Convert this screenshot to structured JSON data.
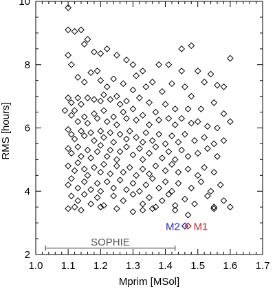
{
  "chart_data": {
    "type": "scatter",
    "xlabel": "Mprim [MSol]",
    "ylabel": "RMS [hours]",
    "xlim": [
      1.0,
      1.7
    ],
    "ylim": [
      2,
      10
    ],
    "x_ticks": [
      "1.0",
      "1.1",
      "1.2",
      "1.3",
      "1.4",
      "1.5",
      "1.6",
      "1.7"
    ],
    "y_ticks": [
      "2",
      "4",
      "6",
      "8",
      "10"
    ],
    "marker": "diamond",
    "marker_color": "#000000",
    "grid": false,
    "range_bar": {
      "label": "SOPHIE",
      "x_start": 1.03,
      "x_end": 1.43,
      "y": 2.2
    },
    "highlight_points": [
      {
        "label": "M2",
        "x": 1.46,
        "y": 2.9,
        "color": "#2b2bb0"
      },
      {
        "label": "M1",
        "x": 1.47,
        "y": 2.9,
        "color": "#b02b2b"
      }
    ],
    "points": [
      [
        1.1,
        9.8
      ],
      [
        1.1,
        9.1
      ],
      [
        1.12,
        9.05
      ],
      [
        1.14,
        9.1
      ],
      [
        1.15,
        8.65
      ],
      [
        1.16,
        8.8
      ],
      [
        1.18,
        8.4
      ],
      [
        1.2,
        8.35
      ],
      [
        1.17,
        7.75
      ],
      [
        1.19,
        7.8
      ],
      [
        1.22,
        8.5
      ],
      [
        1.25,
        8.3
      ],
      [
        1.28,
        8.15
      ],
      [
        1.3,
        8.0
      ],
      [
        1.31,
        7.65
      ],
      [
        1.33,
        7.8
      ],
      [
        1.38,
        8.0
      ],
      [
        1.41,
        8.0
      ],
      [
        1.45,
        8.5
      ],
      [
        1.45,
        7.8
      ],
      [
        1.48,
        8.6
      ],
      [
        1.5,
        7.8
      ],
      [
        1.54,
        7.7
      ],
      [
        1.6,
        8.2
      ],
      [
        1.1,
        8.3
      ],
      [
        1.11,
        8.0
      ],
      [
        1.13,
        7.6
      ],
      [
        1.15,
        7.45
      ],
      [
        1.2,
        7.5
      ],
      [
        1.22,
        7.3
      ],
      [
        1.24,
        7.55
      ],
      [
        1.27,
        7.4
      ],
      [
        1.3,
        7.2
      ],
      [
        1.34,
        7.3
      ],
      [
        1.36,
        7.45
      ],
      [
        1.39,
        7.15
      ],
      [
        1.42,
        7.4
      ],
      [
        1.46,
        7.3
      ],
      [
        1.48,
        7.0
      ],
      [
        1.52,
        7.45
      ],
      [
        1.56,
        7.35
      ],
      [
        1.58,
        7.3
      ],
      [
        1.1,
        6.95
      ],
      [
        1.11,
        6.8
      ],
      [
        1.13,
        6.95
      ],
      [
        1.14,
        6.75
      ],
      [
        1.16,
        6.95
      ],
      [
        1.18,
        6.9
      ],
      [
        1.2,
        6.85
      ],
      [
        1.21,
        7.05
      ],
      [
        1.23,
        6.9
      ],
      [
        1.25,
        7.0
      ],
      [
        1.26,
        6.75
      ],
      [
        1.28,
        6.85
      ],
      [
        1.3,
        6.6
      ],
      [
        1.32,
        6.95
      ],
      [
        1.35,
        6.8
      ],
      [
        1.37,
        6.5
      ],
      [
        1.4,
        6.75
      ],
      [
        1.43,
        6.6
      ],
      [
        1.47,
        6.6
      ],
      [
        1.51,
        6.6
      ],
      [
        1.55,
        6.8
      ],
      [
        1.58,
        6.45
      ],
      [
        1.6,
        6.2
      ],
      [
        1.09,
        6.55
      ],
      [
        1.11,
        6.4
      ],
      [
        1.12,
        6.55
      ],
      [
        1.13,
        6.2
      ],
      [
        1.15,
        6.35
      ],
      [
        1.16,
        6.15
      ],
      [
        1.18,
        6.45
      ],
      [
        1.19,
        6.3
      ],
      [
        1.21,
        6.55
      ],
      [
        1.22,
        6.2
      ],
      [
        1.24,
        6.35
      ],
      [
        1.25,
        6.1
      ],
      [
        1.27,
        6.5
      ],
      [
        1.28,
        6.3
      ],
      [
        1.31,
        6.25
      ],
      [
        1.33,
        6.4
      ],
      [
        1.35,
        6.1
      ],
      [
        1.38,
        6.25
      ],
      [
        1.41,
        6.3
      ],
      [
        1.43,
        6.1
      ],
      [
        1.45,
        6.3
      ],
      [
        1.48,
        6.15
      ],
      [
        1.5,
        6.2
      ],
      [
        1.53,
        6.05
      ],
      [
        1.56,
        6.0
      ],
      [
        1.1,
        5.95
      ],
      [
        1.11,
        5.8
      ],
      [
        1.12,
        5.65
      ],
      [
        1.14,
        5.9
      ],
      [
        1.15,
        5.75
      ],
      [
        1.17,
        5.85
      ],
      [
        1.18,
        5.6
      ],
      [
        1.2,
        5.9
      ],
      [
        1.21,
        5.7
      ],
      [
        1.23,
        5.85
      ],
      [
        1.24,
        5.55
      ],
      [
        1.26,
        5.8
      ],
      [
        1.28,
        5.65
      ],
      [
        1.29,
        5.9
      ],
      [
        1.31,
        5.7
      ],
      [
        1.33,
        5.55
      ],
      [
        1.34,
        5.85
      ],
      [
        1.36,
        5.6
      ],
      [
        1.38,
        5.8
      ],
      [
        1.4,
        5.5
      ],
      [
        1.42,
        5.75
      ],
      [
        1.44,
        5.55
      ],
      [
        1.46,
        5.8
      ],
      [
        1.49,
        5.6
      ],
      [
        1.52,
        5.7
      ],
      [
        1.55,
        5.5
      ],
      [
        1.58,
        5.6
      ],
      [
        1.1,
        5.35
      ],
      [
        1.11,
        5.2
      ],
      [
        1.13,
        5.4
      ],
      [
        1.14,
        5.1
      ],
      [
        1.16,
        5.3
      ],
      [
        1.17,
        5.05
      ],
      [
        1.19,
        5.25
      ],
      [
        1.2,
        5.45
      ],
      [
        1.22,
        5.1
      ],
      [
        1.23,
        5.3
      ],
      [
        1.25,
        5.0
      ],
      [
        1.26,
        5.25
      ],
      [
        1.28,
        5.4
      ],
      [
        1.3,
        5.15
      ],
      [
        1.32,
        5.35
      ],
      [
        1.33,
        5.0
      ],
      [
        1.35,
        5.2
      ],
      [
        1.37,
        5.4
      ],
      [
        1.39,
        5.05
      ],
      [
        1.41,
        5.25
      ],
      [
        1.43,
        5.0
      ],
      [
        1.45,
        5.3
      ],
      [
        1.47,
        5.1
      ],
      [
        1.5,
        5.2
      ],
      [
        1.53,
        5.35
      ],
      [
        1.56,
        5.1
      ],
      [
        1.1,
        4.8
      ],
      [
        1.12,
        4.65
      ],
      [
        1.13,
        4.9
      ],
      [
        1.15,
        4.7
      ],
      [
        1.16,
        4.5
      ],
      [
        1.18,
        4.75
      ],
      [
        1.2,
        4.6
      ],
      [
        1.21,
        4.85
      ],
      [
        1.23,
        4.55
      ],
      [
        1.25,
        4.8
      ],
      [
        1.27,
        4.6
      ],
      [
        1.29,
        4.75
      ],
      [
        1.31,
        4.5
      ],
      [
        1.33,
        4.7
      ],
      [
        1.35,
        4.55
      ],
      [
        1.37,
        4.8
      ],
      [
        1.4,
        4.65
      ],
      [
        1.42,
        4.85
      ],
      [
        1.44,
        4.6
      ],
      [
        1.47,
        4.7
      ],
      [
        1.5,
        4.5
      ],
      [
        1.52,
        4.75
      ],
      [
        1.55,
        4.6
      ],
      [
        1.1,
        4.2
      ],
      [
        1.11,
        4.4
      ],
      [
        1.13,
        4.1
      ],
      [
        1.15,
        4.3
      ],
      [
        1.17,
        4.05
      ],
      [
        1.19,
        4.25
      ],
      [
        1.2,
        4.0
      ],
      [
        1.22,
        4.3
      ],
      [
        1.24,
        4.1
      ],
      [
        1.26,
        4.35
      ],
      [
        1.28,
        4.05
      ],
      [
        1.3,
        4.25
      ],
      [
        1.32,
        4.0
      ],
      [
        1.34,
        4.2
      ],
      [
        1.36,
        4.4
      ],
      [
        1.38,
        4.1
      ],
      [
        1.4,
        4.3
      ],
      [
        1.42,
        4.0
      ],
      [
        1.44,
        4.25
      ],
      [
        1.48,
        4.1
      ],
      [
        1.51,
        4.3
      ],
      [
        1.54,
        4.0
      ],
      [
        1.57,
        4.2
      ],
      [
        1.11,
        3.85
      ],
      [
        1.13,
        3.7
      ],
      [
        1.15,
        3.9
      ],
      [
        1.17,
        3.6
      ],
      [
        1.19,
        3.8
      ],
      [
        1.21,
        3.55
      ],
      [
        1.24,
        3.85
      ],
      [
        1.27,
        3.7
      ],
      [
        1.3,
        3.9
      ],
      [
        1.33,
        3.6
      ],
      [
        1.35,
        3.8
      ],
      [
        1.37,
        3.5
      ],
      [
        1.39,
        3.7
      ],
      [
        1.41,
        3.9
      ],
      [
        1.43,
        3.55
      ],
      [
        1.46,
        3.75
      ],
      [
        1.49,
        3.6
      ],
      [
        1.53,
        3.85
      ],
      [
        1.55,
        3.5
      ],
      [
        1.58,
        3.7
      ],
      [
        1.1,
        3.45
      ],
      [
        1.12,
        3.5
      ],
      [
        1.14,
        3.4
      ],
      [
        1.2,
        3.5
      ],
      [
        1.25,
        3.45
      ],
      [
        1.3,
        3.35
      ],
      [
        1.33,
        3.4
      ],
      [
        1.36,
        3.45
      ],
      [
        1.43,
        3.4
      ],
      [
        1.47,
        3.25
      ],
      [
        1.55,
        3.45
      ],
      [
        1.6,
        3.5
      ]
    ]
  }
}
